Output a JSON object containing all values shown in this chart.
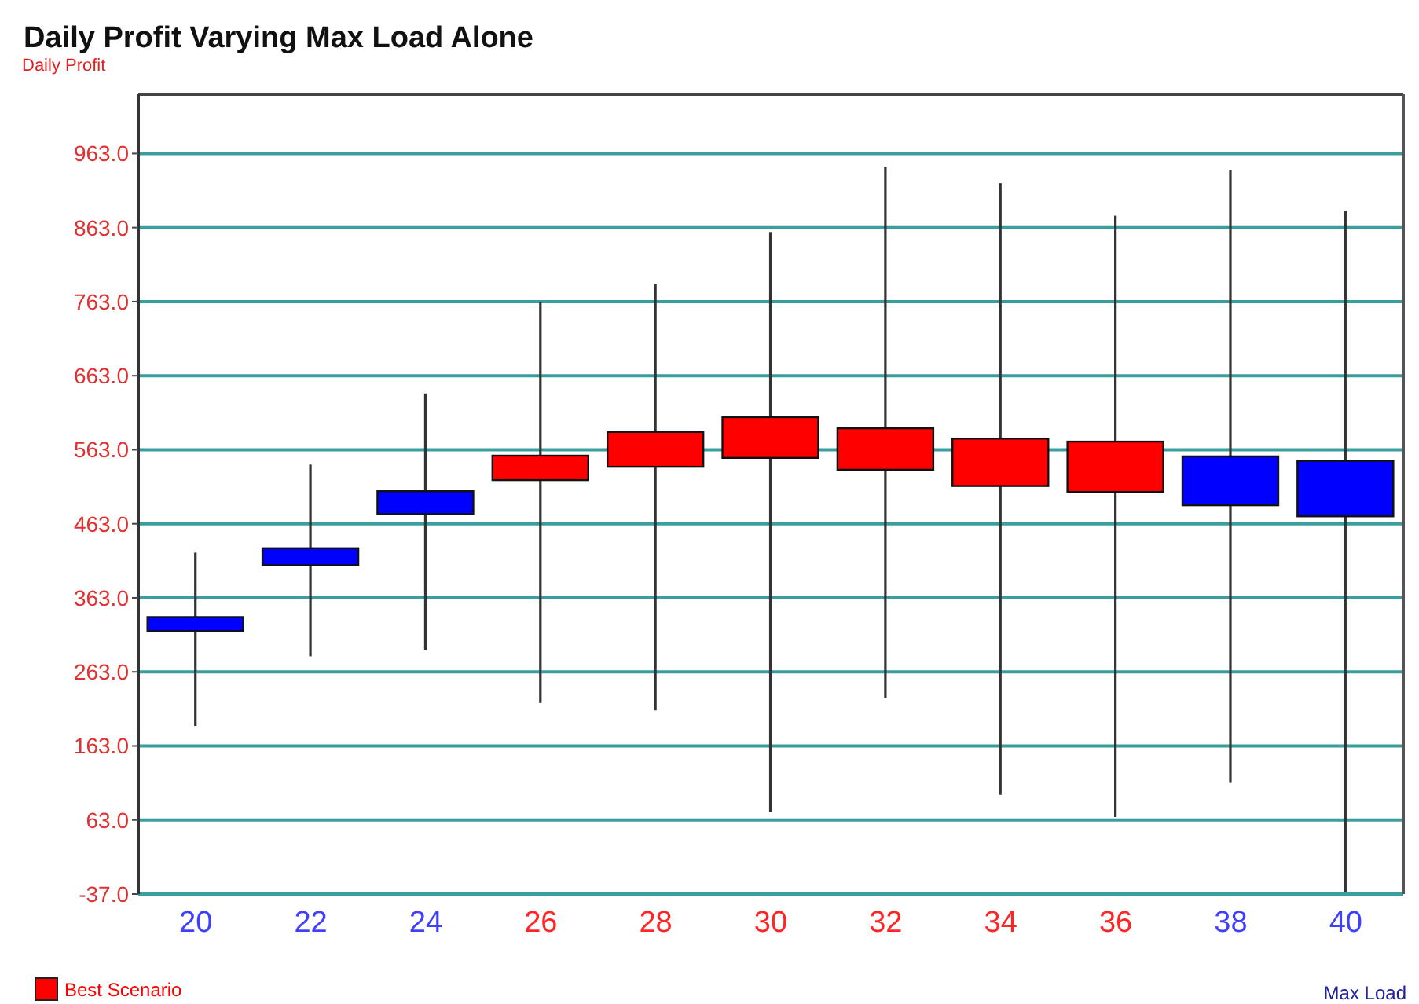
{
  "chart_data": {
    "type": "candlestick",
    "title": "Daily Profit Varying Max Load Alone",
    "ylabel": "Daily Profit",
    "xlabel": "Max Load",
    "categories": [
      "20",
      "22",
      "24",
      "26",
      "28",
      "30",
      "32",
      "34",
      "36",
      "38",
      "40"
    ],
    "series": [
      {
        "color": "#0000ff",
        "ohlc": [
          [
            318,
            424,
            190,
            337
          ],
          [
            407,
            543,
            284,
            430
          ],
          [
            476,
            639,
            292,
            507
          ],
          null,
          null,
          null,
          null,
          null,
          null,
          [
            488,
            941,
            113,
            554
          ],
          [
            473,
            886,
            -37,
            548
          ]
        ]
      },
      {
        "name": "Best Scenario",
        "color": "#ff0000",
        "ohlc": [
          null,
          null,
          null,
          [
            522,
            762,
            221,
            555
          ],
          [
            540,
            787,
            211,
            587
          ],
          [
            552,
            857,
            74,
            607
          ],
          [
            536,
            945,
            228,
            592
          ],
          [
            514,
            923,
            97,
            578
          ],
          [
            506,
            879,
            67,
            574
          ],
          null,
          null
        ]
      }
    ],
    "ylim": [
      -37,
      1043
    ],
    "yticks": [
      {
        "value": -37,
        "label": "-37.0"
      },
      {
        "value": 63,
        "label": "63.0"
      },
      {
        "value": 163,
        "label": "163.0"
      },
      {
        "value": 263,
        "label": "263.0"
      },
      {
        "value": 363,
        "label": "363.0"
      },
      {
        "value": 463,
        "label": "463.0"
      },
      {
        "value": 563,
        "label": "563.0"
      },
      {
        "value": 663,
        "label": "663.0"
      },
      {
        "value": 763,
        "label": "763.0"
      },
      {
        "value": 863,
        "label": "863.0"
      },
      {
        "value": 963,
        "label": "963.0"
      }
    ],
    "grid": "y",
    "legend": "bottom left"
  }
}
